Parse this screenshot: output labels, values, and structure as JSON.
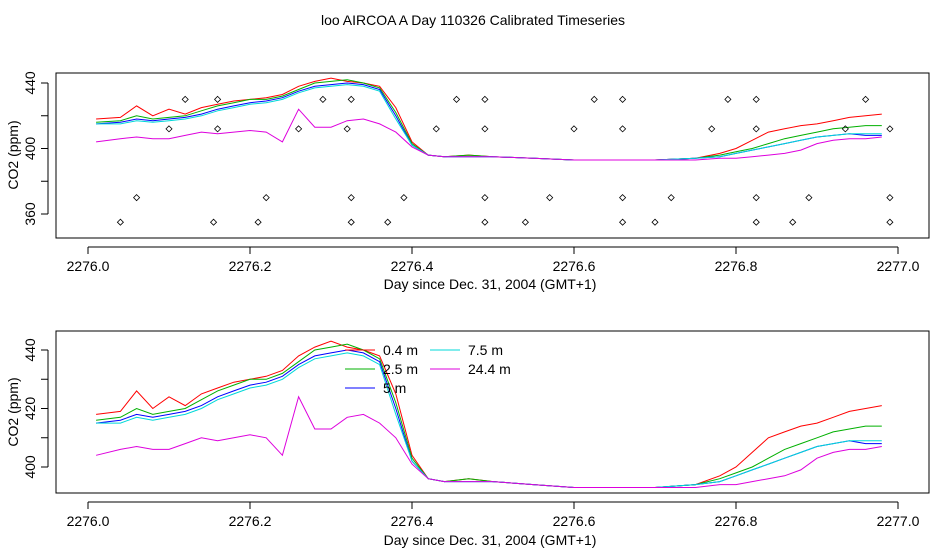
{
  "title": "loo AIRCOA A  Day 110326  Calibrated Timeseries",
  "chart_data": [
    {
      "type": "line",
      "xlabel": "Day since Dec. 31, 2004 (GMT+1)",
      "ylabel": "CO2 (ppm)",
      "xlim": [
        2276.0,
        2277.0
      ],
      "ylim": [
        350,
        445
      ],
      "xticks": [
        "2276.0",
        "2276.2",
        "2276.4",
        "2276.6",
        "2276.8",
        "2277.0"
      ],
      "yticks": [
        "360",
        "400",
        "440"
      ],
      "series": [
        {
          "name": "0.4 m",
          "color": "#ff0000",
          "x": [
            2276.01,
            2276.04,
            2276.06,
            2276.08,
            2276.1,
            2276.12,
            2276.14,
            2276.16,
            2276.18,
            2276.2,
            2276.22,
            2276.24,
            2276.26,
            2276.28,
            2276.3,
            2276.32,
            2276.34,
            2276.36,
            2276.38,
            2276.4,
            2276.42,
            2276.44,
            2276.47,
            2276.5,
            2276.55,
            2276.6,
            2276.65,
            2276.7,
            2276.75,
            2276.78,
            2276.8,
            2276.82,
            2276.84,
            2276.86,
            2276.88,
            2276.9,
            2276.92,
            2276.94,
            2276.96,
            2276.98
          ],
          "y": [
            418,
            419,
            426,
            420,
            424,
            421,
            425,
            427,
            429,
            430,
            431,
            433,
            438,
            441,
            443,
            441,
            440,
            438,
            425,
            404,
            396,
            395,
            396,
            395,
            394,
            393,
            393,
            393,
            394,
            397,
            400,
            405,
            410,
            412,
            414,
            415,
            417,
            419,
            420,
            421
          ]
        },
        {
          "name": "2.5 m",
          "color": "#00b000",
          "x": [
            2276.01,
            2276.04,
            2276.06,
            2276.08,
            2276.1,
            2276.12,
            2276.14,
            2276.16,
            2276.18,
            2276.2,
            2276.22,
            2276.24,
            2276.26,
            2276.28,
            2276.3,
            2276.32,
            2276.34,
            2276.36,
            2276.38,
            2276.4,
            2276.42,
            2276.44,
            2276.47,
            2276.5,
            2276.55,
            2276.6,
            2276.65,
            2276.7,
            2276.75,
            2276.78,
            2276.8,
            2276.82,
            2276.84,
            2276.86,
            2276.88,
            2276.9,
            2276.92,
            2276.94,
            2276.96,
            2276.98
          ],
          "y": [
            416,
            417,
            420,
            418,
            419,
            420,
            423,
            426,
            428,
            430,
            430,
            432,
            436,
            440,
            441,
            442,
            440,
            437,
            422,
            403,
            396,
            395,
            396,
            395,
            394,
            393,
            393,
            393,
            394,
            396,
            398,
            400,
            403,
            406,
            408,
            410,
            412,
            413,
            414,
            414
          ]
        },
        {
          "name": "5 m",
          "color": "#0000ff",
          "x": [
            2276.01,
            2276.04,
            2276.06,
            2276.08,
            2276.1,
            2276.12,
            2276.14,
            2276.16,
            2276.18,
            2276.2,
            2276.22,
            2276.24,
            2276.26,
            2276.28,
            2276.3,
            2276.32,
            2276.34,
            2276.36,
            2276.38,
            2276.4,
            2276.42,
            2276.44,
            2276.47,
            2276.5,
            2276.55,
            2276.6,
            2276.65,
            2276.7,
            2276.75,
            2276.78,
            2276.8,
            2276.82,
            2276.84,
            2276.86,
            2276.88,
            2276.9,
            2276.92,
            2276.94,
            2276.96,
            2276.98
          ],
          "y": [
            415,
            416,
            418,
            417,
            418,
            419,
            421,
            424,
            426,
            428,
            429,
            431,
            435,
            438,
            439,
            440,
            439,
            436,
            420,
            402,
            396,
            395,
            395,
            395,
            394,
            393,
            393,
            393,
            394,
            395,
            397,
            399,
            401,
            403,
            405,
            407,
            408,
            409,
            408,
            408
          ]
        },
        {
          "name": "7.5 m",
          "color": "#00d8d8",
          "x": [
            2276.01,
            2276.04,
            2276.06,
            2276.08,
            2276.1,
            2276.12,
            2276.14,
            2276.16,
            2276.18,
            2276.2,
            2276.22,
            2276.24,
            2276.26,
            2276.28,
            2276.3,
            2276.32,
            2276.34,
            2276.36,
            2276.38,
            2276.4,
            2276.42,
            2276.44,
            2276.47,
            2276.5,
            2276.55,
            2276.6,
            2276.65,
            2276.7,
            2276.75,
            2276.78,
            2276.8,
            2276.82,
            2276.84,
            2276.86,
            2276.88,
            2276.9,
            2276.92,
            2276.94,
            2276.96,
            2276.98
          ],
          "y": [
            415,
            415,
            417,
            416,
            417,
            418,
            420,
            423,
            425,
            427,
            428,
            430,
            434,
            437,
            438,
            439,
            438,
            435,
            418,
            402,
            396,
            395,
            395,
            395,
            394,
            393,
            393,
            393,
            394,
            395,
            397,
            399,
            401,
            403,
            405,
            407,
            408,
            409,
            409,
            409
          ]
        },
        {
          "name": "24.4 m",
          "color": "#dd00dd",
          "x": [
            2276.01,
            2276.04,
            2276.06,
            2276.08,
            2276.1,
            2276.12,
            2276.14,
            2276.16,
            2276.18,
            2276.2,
            2276.22,
            2276.24,
            2276.26,
            2276.28,
            2276.3,
            2276.32,
            2276.34,
            2276.36,
            2276.38,
            2276.4,
            2276.42,
            2276.44,
            2276.47,
            2276.5,
            2276.55,
            2276.6,
            2276.65,
            2276.7,
            2276.75,
            2276.78,
            2276.8,
            2276.82,
            2276.84,
            2276.86,
            2276.88,
            2276.9,
            2276.92,
            2276.94,
            2276.96,
            2276.98
          ],
          "y": [
            404,
            406,
            407,
            406,
            406,
            408,
            410,
            409,
            410,
            411,
            410,
            404,
            424,
            413,
            413,
            417,
            418,
            415,
            410,
            401,
            396,
            395,
            395,
            395,
            394,
            393,
            393,
            393,
            393,
            394,
            394,
            395,
            396,
            397,
            399,
            403,
            405,
            406,
            406,
            407
          ]
        }
      ],
      "markers": {
        "x": [
          2276.04,
          2276.06,
          2276.1,
          2276.12,
          2276.16,
          2276.155,
          2276.16,
          2276.21,
          2276.22,
          2276.26,
          2276.29,
          2276.32,
          2276.325,
          2276.325,
          2276.325,
          2276.37,
          2276.39,
          2276.43,
          2276.455,
          2276.49,
          2276.49,
          2276.49,
          2276.49,
          2276.54,
          2276.57,
          2276.6,
          2276.625,
          2276.66,
          2276.66,
          2276.66,
          2276.66,
          2276.7,
          2276.72,
          2276.77,
          2276.79,
          2276.825,
          2276.825,
          2276.825,
          2276.825,
          2276.87,
          2276.89,
          2276.935,
          2276.96,
          2276.99,
          2276.99,
          2276.99
        ],
        "y": [
          355,
          370,
          412,
          430,
          412,
          355,
          430,
          355,
          370,
          412,
          430,
          412,
          370,
          355,
          430,
          355,
          370,
          412,
          430,
          355,
          370,
          412,
          430,
          355,
          370,
          412,
          430,
          355,
          370,
          412,
          430,
          355,
          370,
          412,
          430,
          355,
          370,
          412,
          430,
          355,
          370,
          412,
          430,
          355,
          370,
          412
        ]
      }
    },
    {
      "type": "line",
      "xlabel": "Day since Dec. 31, 2004 (GMT+1)",
      "ylabel": "CO2 (ppm)",
      "xlim": [
        2276.0,
        2277.0
      ],
      "ylim": [
        393,
        445
      ],
      "xticks": [
        "2276.0",
        "2276.2",
        "2276.4",
        "2276.6",
        "2276.8",
        "2277.0"
      ],
      "yticks": [
        "400",
        "420",
        "440"
      ],
      "legend": [
        "0.4 m",
        "2.5 m",
        "5 m",
        "7.5 m",
        "24.4 m"
      ],
      "series": "same-as-top"
    }
  ]
}
